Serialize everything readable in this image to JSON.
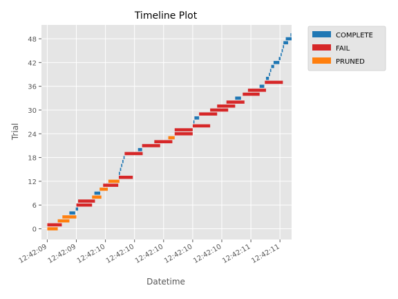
{
  "chart_data": {
    "type": "timeline",
    "title": "Timeline Plot",
    "xlabel": "Datetime",
    "ylabel": "Trial",
    "x_tick_labels": [
      "12:42:09",
      "12:42:09",
      "12:42:10",
      "12:42:10",
      "12:42:10",
      "12:42:10",
      "12:42:10",
      "12:42:11",
      "12:42:11"
    ],
    "y_ticks": [
      0,
      6,
      12,
      18,
      24,
      30,
      36,
      42,
      48
    ],
    "xlim": [
      -0.1,
      4.2
    ],
    "ylim": [
      -2.7,
      51.5
    ],
    "grid": true,
    "legend_position": "outside-top-right",
    "state_colors": {
      "COMPLETE": "#1f77b4",
      "FAIL": "#d62728",
      "PRUNED": "#ff7f0e"
    },
    "legend": [
      "COMPLETE",
      "FAIL",
      "PRUNED"
    ],
    "time_unit": "seconds",
    "trials": [
      {
        "trial": 0,
        "start": 0.0,
        "end": 0.18,
        "state": "PRUNED"
      },
      {
        "trial": 1,
        "start": 0.0,
        "end": 0.25,
        "state": "FAIL"
      },
      {
        "trial": 2,
        "start": 0.18,
        "end": 0.38,
        "state": "PRUNED"
      },
      {
        "trial": 3,
        "start": 0.26,
        "end": 0.5,
        "state": "PRUNED"
      },
      {
        "trial": 4,
        "start": 0.38,
        "end": 0.48,
        "state": "COMPLETE"
      },
      {
        "trial": 5,
        "start": 0.49,
        "end": 0.53,
        "state": "COMPLETE"
      },
      {
        "trial": 6,
        "start": 0.5,
        "end": 0.77,
        "state": "FAIL"
      },
      {
        "trial": 7,
        "start": 0.53,
        "end": 0.82,
        "state": "FAIL"
      },
      {
        "trial": 8,
        "start": 0.77,
        "end": 0.93,
        "state": "PRUNED"
      },
      {
        "trial": 9,
        "start": 0.81,
        "end": 0.91,
        "state": "COMPLETE"
      },
      {
        "trial": 10,
        "start": 0.9,
        "end": 1.04,
        "state": "PRUNED"
      },
      {
        "trial": 11,
        "start": 0.96,
        "end": 1.22,
        "state": "FAIL"
      },
      {
        "trial": 12,
        "start": 1.05,
        "end": 1.24,
        "state": "PRUNED"
      },
      {
        "trial": 13,
        "start": 1.23,
        "end": 1.47,
        "state": "FAIL"
      },
      {
        "trial": 14,
        "start": 1.23,
        "end": 1.25,
        "state": "COMPLETE"
      },
      {
        "trial": 15,
        "start": 1.25,
        "end": 1.27,
        "state": "COMPLETE"
      },
      {
        "trial": 16,
        "start": 1.27,
        "end": 1.29,
        "state": "COMPLETE"
      },
      {
        "trial": 17,
        "start": 1.29,
        "end": 1.31,
        "state": "COMPLETE"
      },
      {
        "trial": 18,
        "start": 1.31,
        "end": 1.33,
        "state": "COMPLETE"
      },
      {
        "trial": 19,
        "start": 1.33,
        "end": 1.64,
        "state": "FAIL"
      },
      {
        "trial": 20,
        "start": 1.56,
        "end": 1.63,
        "state": "COMPLETE"
      },
      {
        "trial": 21,
        "start": 1.63,
        "end": 1.94,
        "state": "FAIL"
      },
      {
        "trial": 22,
        "start": 1.84,
        "end": 2.15,
        "state": "FAIL"
      },
      {
        "trial": 23,
        "start": 2.08,
        "end": 2.19,
        "state": "PRUNED"
      },
      {
        "trial": 24,
        "start": 2.19,
        "end": 2.5,
        "state": "FAIL"
      },
      {
        "trial": 25,
        "start": 2.19,
        "end": 2.5,
        "state": "FAIL"
      },
      {
        "trial": 26,
        "start": 2.5,
        "end": 2.8,
        "state": "FAIL"
      },
      {
        "trial": 27,
        "start": 2.51,
        "end": 2.53,
        "state": "COMPLETE"
      },
      {
        "trial": 28,
        "start": 2.53,
        "end": 2.61,
        "state": "COMPLETE"
      },
      {
        "trial": 29,
        "start": 2.61,
        "end": 2.92,
        "state": "FAIL"
      },
      {
        "trial": 30,
        "start": 2.8,
        "end": 3.11,
        "state": "FAIL"
      },
      {
        "trial": 31,
        "start": 2.92,
        "end": 3.23,
        "state": "FAIL"
      },
      {
        "trial": 32,
        "start": 3.08,
        "end": 3.39,
        "state": "FAIL"
      },
      {
        "trial": 33,
        "start": 3.23,
        "end": 3.33,
        "state": "COMPLETE"
      },
      {
        "trial": 34,
        "start": 3.36,
        "end": 3.65,
        "state": "FAIL"
      },
      {
        "trial": 35,
        "start": 3.45,
        "end": 3.76,
        "state": "FAIL"
      },
      {
        "trial": 36,
        "start": 3.65,
        "end": 3.73,
        "state": "COMPLETE"
      },
      {
        "trial": 37,
        "start": 3.74,
        "end": 4.05,
        "state": "FAIL"
      },
      {
        "trial": 38,
        "start": 3.76,
        "end": 3.81,
        "state": "COMPLETE"
      },
      {
        "trial": 39,
        "start": 3.81,
        "end": 3.83,
        "state": "COMPLETE"
      },
      {
        "trial": 40,
        "start": 3.83,
        "end": 3.85,
        "state": "COMPLETE"
      },
      {
        "trial": 41,
        "start": 3.85,
        "end": 3.9,
        "state": "COMPLETE"
      },
      {
        "trial": 42,
        "start": 3.89,
        "end": 3.99,
        "state": "COMPLETE"
      },
      {
        "trial": 43,
        "start": 3.98,
        "end": 4.01,
        "state": "COMPLETE"
      },
      {
        "trial": 44,
        "start": 4.01,
        "end": 4.03,
        "state": "COMPLETE"
      },
      {
        "trial": 45,
        "start": 4.03,
        "end": 4.05,
        "state": "COMPLETE"
      },
      {
        "trial": 46,
        "start": 4.05,
        "end": 4.07,
        "state": "COMPLETE"
      },
      {
        "trial": 47,
        "start": 4.06,
        "end": 4.14,
        "state": "COMPLETE"
      },
      {
        "trial": 48,
        "start": 4.1,
        "end": 4.2,
        "state": "COMPLETE"
      },
      {
        "trial": 49,
        "start": 4.18,
        "end": 4.19,
        "state": "COMPLETE"
      }
    ]
  }
}
